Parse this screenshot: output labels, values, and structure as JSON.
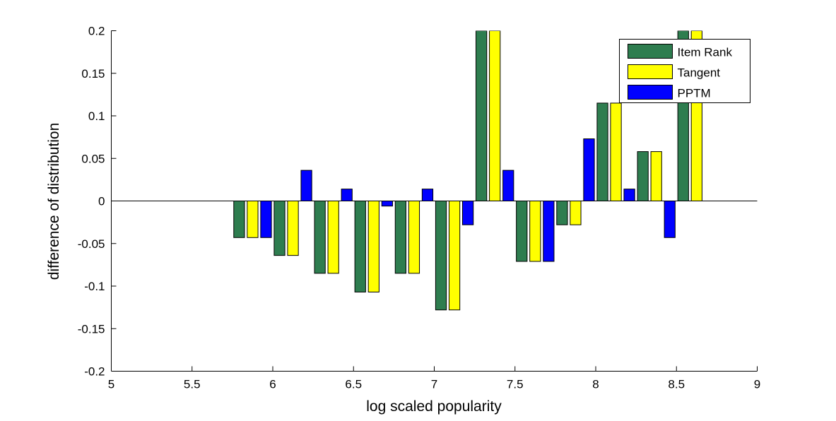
{
  "chart_data": {
    "type": "bar",
    "title": "",
    "xlabel": "log scaled popularity",
    "ylabel": "difference of distribution",
    "xlim": [
      5,
      9
    ],
    "ylim": [
      -0.2,
      0.2
    ],
    "xticks": [
      5,
      5.5,
      6,
      6.5,
      7,
      7.5,
      8,
      8.5,
      9
    ],
    "xtick_labels": [
      "5",
      "5.5",
      "6",
      "6.5",
      "7",
      "7.5",
      "8",
      "8.5",
      "9"
    ],
    "yticks": [
      -0.2,
      -0.15,
      -0.1,
      -0.05,
      0,
      0.05,
      0.1,
      0.15,
      0.2
    ],
    "ytick_labels": [
      "-0.2",
      "-0.15",
      "-0.1",
      "-0.05",
      "0",
      "0.05",
      "0.1",
      "0.15",
      "0.2"
    ],
    "grid": false,
    "legend_position": "top-right",
    "categories": [
      5.875,
      6.125,
      6.375,
      6.625,
      6.875,
      7.125,
      7.375,
      7.625,
      7.875,
      8.125,
      8.375,
      8.625
    ],
    "bar_group_width": 0.25,
    "series": [
      {
        "name": "Item Rank",
        "color": "#2e7d4f",
        "values": [
          -0.043,
          -0.064,
          -0.085,
          -0.107,
          -0.085,
          -0.128,
          0.2,
          -0.071,
          -0.028,
          0.115,
          0.058,
          0.2
        ]
      },
      {
        "name": "Tangent",
        "color": "#ffff00",
        "values": [
          -0.043,
          -0.064,
          -0.085,
          -0.107,
          -0.085,
          -0.128,
          0.2,
          -0.071,
          -0.028,
          0.115,
          0.058,
          0.2
        ]
      },
      {
        "name": "PPTM",
        "color": "#0000ff",
        "values": [
          -0.043,
          0.036,
          0.014,
          -0.006,
          0.014,
          -0.028,
          0.036,
          -0.071,
          0.073,
          0.014,
          -0.043,
          null
        ]
      }
    ]
  }
}
